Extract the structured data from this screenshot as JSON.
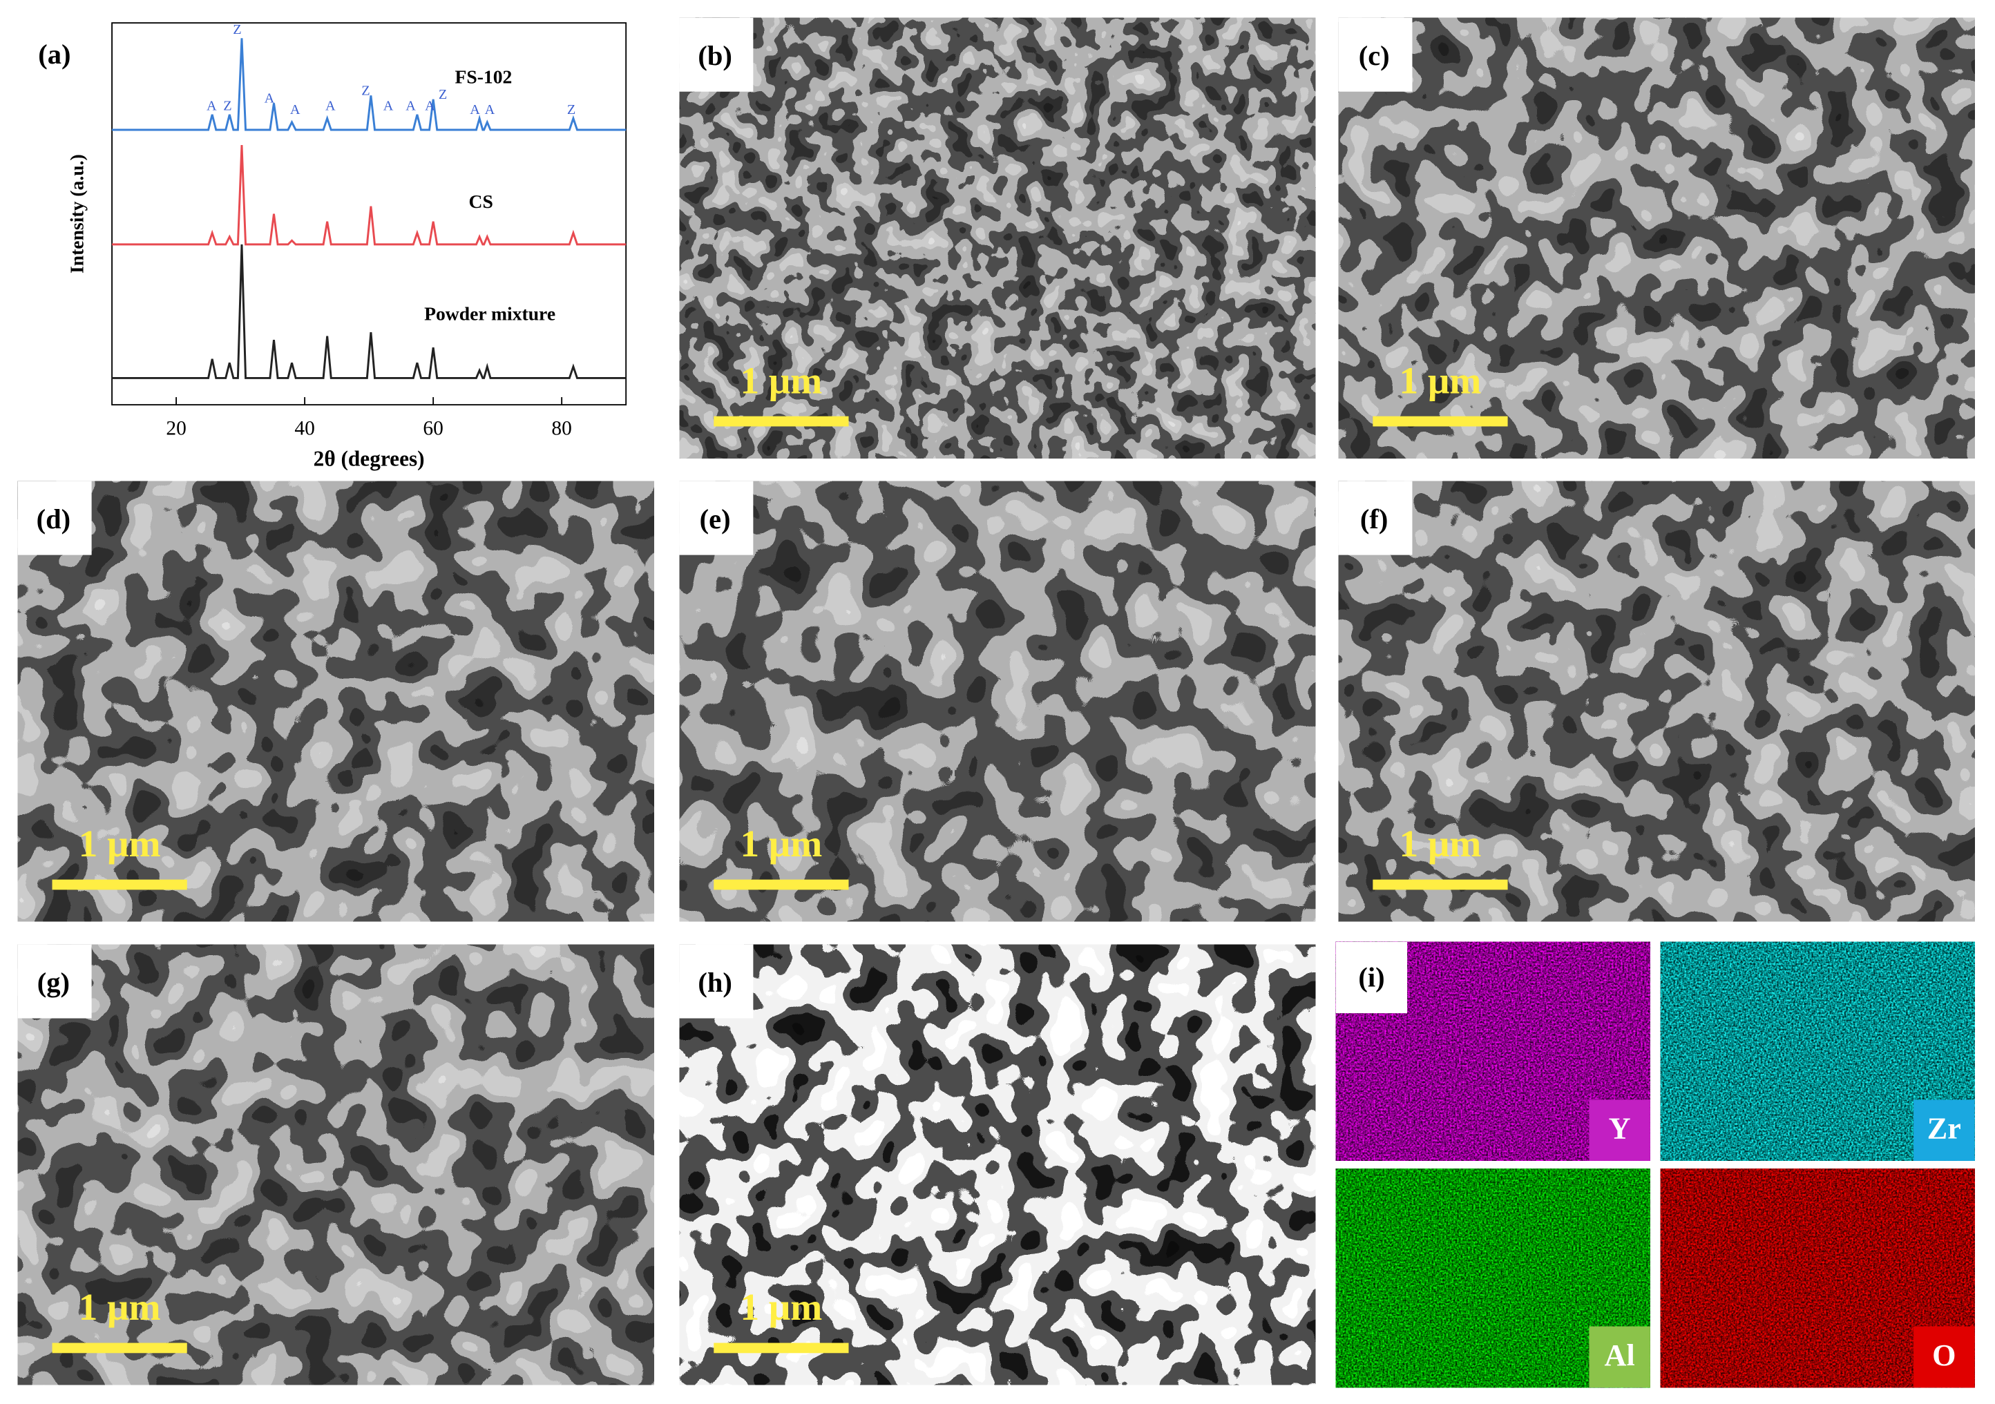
{
  "chart_data": {
    "type": "line",
    "panel_label": "(a)",
    "xlabel": "2θ (degrees)",
    "ylabel": "Intensity (a.u.)",
    "xlim": [
      10,
      90
    ],
    "xticks": [
      20,
      40,
      60,
      80
    ],
    "ylim": [
      0,
      100
    ],
    "x": [
      10,
      25,
      25.6,
      26.2,
      27.7,
      28.3,
      28.9,
      29.6,
      30.2,
      30.8,
      34.6,
      35.2,
      35.8,
      37.4,
      38,
      38.6,
      42.9,
      43.5,
      44.1,
      49.7,
      50.3,
      50.9,
      56.9,
      57.5,
      58.1,
      59.4,
      60,
      60.6,
      66.7,
      67.2,
      67.7,
      67.9,
      68.4,
      68.9,
      81.2,
      81.8,
      82.4,
      90
    ],
    "series": [
      {
        "name": "FS-102",
        "color": "#3a7fd5",
        "values": [
          72,
          72,
          76,
          72,
          72,
          76,
          72,
          72,
          96,
          72,
          72,
          79,
          72,
          72,
          74,
          72,
          72,
          75,
          72,
          72,
          81,
          72,
          72,
          76,
          72,
          72,
          80,
          72,
          72,
          75,
          72,
          72,
          74,
          72,
          72,
          75,
          72,
          72
        ]
      },
      {
        "name": "CS",
        "color": "#e84a50",
        "values": [
          42,
          42,
          45,
          42,
          42,
          44,
          42,
          42,
          68,
          42,
          42,
          50,
          42,
          42,
          43,
          42,
          42,
          48,
          42,
          42,
          52,
          42,
          42,
          45,
          42,
          42,
          48,
          42,
          42,
          44,
          42,
          42,
          44,
          42,
          42,
          45,
          42,
          42
        ]
      },
      {
        "name": "Powder mixture",
        "color": "#222222",
        "values": [
          7,
          7,
          12,
          7,
          7,
          11,
          7,
          7,
          42,
          7,
          7,
          17,
          7,
          7,
          11,
          7,
          7,
          18,
          7,
          7,
          19,
          7,
          7,
          11,
          7,
          7,
          15,
          7,
          7,
          9,
          7,
          7,
          10,
          7,
          7,
          10,
          7,
          7
        ]
      }
    ],
    "annotations": [
      {
        "text": "A",
        "x": 25.5,
        "y": 78
      },
      {
        "text": "Z",
        "x": 28,
        "y": 78
      },
      {
        "text": "Z",
        "x": 29.5,
        "y": 98
      },
      {
        "text": "A",
        "x": 34.5,
        "y": 80
      },
      {
        "text": "A",
        "x": 38.5,
        "y": 77
      },
      {
        "text": "A",
        "x": 44,
        "y": 78
      },
      {
        "text": "Z",
        "x": 49.5,
        "y": 82
      },
      {
        "text": "A",
        "x": 53,
        "y": 78
      },
      {
        "text": "A",
        "x": 56.5,
        "y": 78
      },
      {
        "text": "A",
        "x": 59.5,
        "y": 78
      },
      {
        "text": "Z",
        "x": 61.5,
        "y": 81
      },
      {
        "text": "A",
        "x": 66.5,
        "y": 77
      },
      {
        "text": "A",
        "x": 68.8,
        "y": 77
      },
      {
        "text": "Z",
        "x": 81.5,
        "y": 77
      }
    ]
  },
  "panels": [
    {
      "label": "(b)",
      "scale_bar": "1 μm"
    },
    {
      "label": "(c)",
      "scale_bar": "1 μm"
    },
    {
      "label": "(d)",
      "scale_bar": "1 μm"
    },
    {
      "label": "(e)",
      "scale_bar": "1 μm"
    },
    {
      "label": "(f)",
      "scale_bar": "1 μm"
    },
    {
      "label": "(g)",
      "scale_bar": "1 μm"
    },
    {
      "label": "(h)",
      "scale_bar": "1 μm"
    }
  ],
  "eds_maps": {
    "label": "(i)",
    "elements": [
      "Y",
      "Zr",
      "Al",
      "O"
    ]
  }
}
